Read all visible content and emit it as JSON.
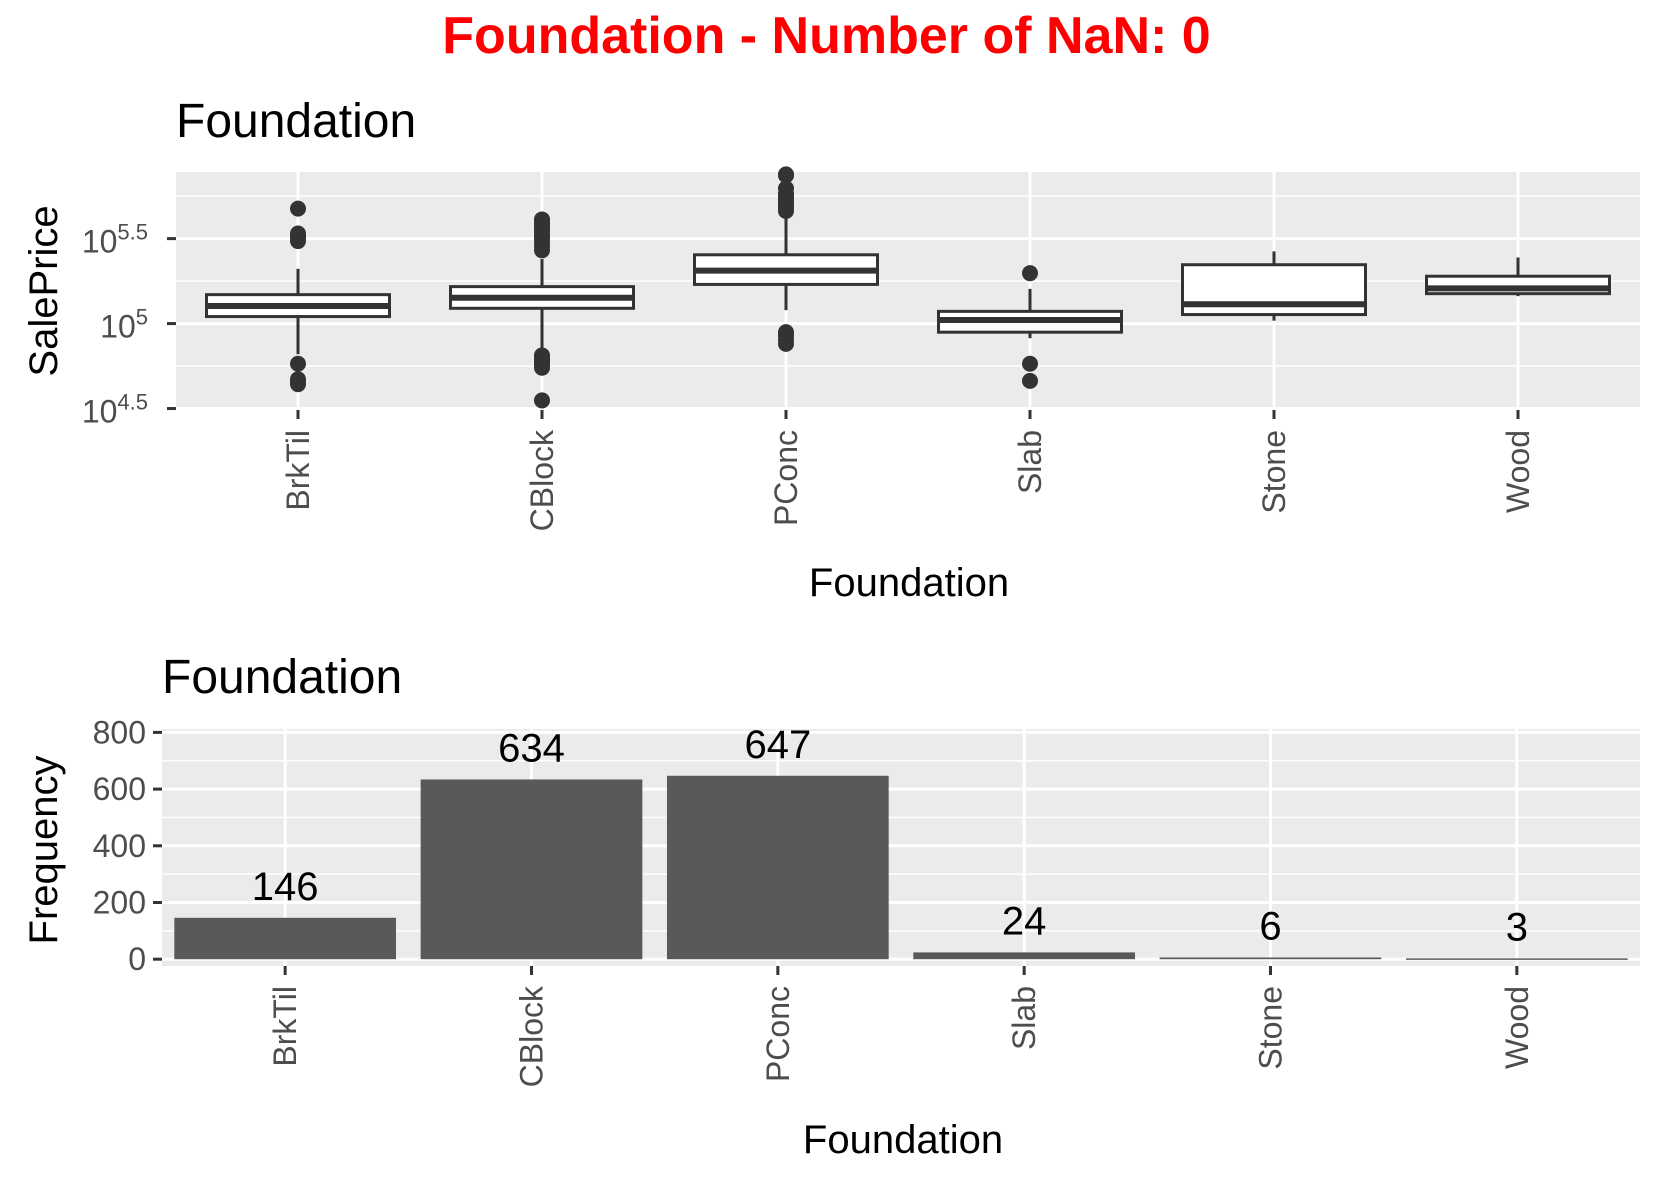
{
  "page": {
    "title": "Foundation - Number of NaN: 0",
    "title_color": "#ff0000"
  },
  "chart_data": [
    {
      "type": "box",
      "title": "Foundation",
      "xlabel": "Foundation",
      "ylabel": "SalePrice",
      "y_scale": "log10",
      "categories": [
        "BrkTil",
        "CBlock",
        "PConc",
        "Slab",
        "Stone",
        "Wood"
      ],
      "yticks": [
        {
          "value": 31623,
          "base": "10",
          "exp": "4.5"
        },
        {
          "value": 100000,
          "base": "10",
          "exp": "5"
        },
        {
          "value": 316228,
          "base": "10",
          "exp": "5.5"
        }
      ],
      "ylim": [
        31000,
        780000
      ],
      "boxes": [
        {
          "category": "BrkTil",
          "whisker_low": 66000,
          "q1": 110000,
          "median": 127000,
          "q3": 148000,
          "whisker_high": 210000,
          "outliers": [
            44000,
            46000,
            47000,
            58000,
            306000,
            319000,
            330000,
            339000,
            475000
          ]
        },
        {
          "category": "CBlock",
          "whisker_low": 68000,
          "q1": 123000,
          "median": 142000,
          "q3": 165000,
          "whisker_high": 240000,
          "outliers": [
            35300,
            55000,
            57000,
            59000,
            61000,
            63000,
            65000,
            270000,
            285000,
            300000,
            315000,
            325000,
            340000,
            355000,
            370000,
            385000,
            400000,
            410000
          ]
        },
        {
          "category": "PConc",
          "whisker_low": 120000,
          "q1": 170000,
          "median": 205000,
          "q3": 254000,
          "whisker_high": 440000,
          "outliers": [
            76000,
            80000,
            85000,
            89000,
            460000,
            480000,
            500000,
            520000,
            540000,
            560000,
            580000,
            625000,
            745000,
            755000
          ]
        },
        {
          "category": "Slab",
          "whisker_low": 82000,
          "q1": 89000,
          "median": 105000,
          "q3": 118000,
          "whisker_high": 160000,
          "outliers": [
            46000,
            58000,
            198000
          ]
        },
        {
          "category": "Stone",
          "whisker_low": 104000,
          "q1": 113000,
          "median": 130000,
          "q3": 222000,
          "whisker_high": 266000,
          "outliers": []
        },
        {
          "category": "Wood",
          "whisker_low": 145000,
          "q1": 150000,
          "median": 161000,
          "q3": 190000,
          "whisker_high": 245000,
          "outliers": []
        }
      ]
    },
    {
      "type": "bar",
      "title": "Foundation",
      "xlabel": "Foundation",
      "ylabel": "Frequency",
      "categories": [
        "BrkTil",
        "CBlock",
        "PConc",
        "Slab",
        "Stone",
        "Wood"
      ],
      "values": [
        146,
        634,
        647,
        24,
        6,
        3
      ],
      "data_labels": [
        "146",
        "634",
        "647",
        "24",
        "6",
        "3"
      ],
      "yticks": [
        0,
        200,
        400,
        600,
        800
      ],
      "ytick_labels": [
        "0",
        "200",
        "400",
        "600",
        "800"
      ],
      "ylim": [
        0,
        800
      ]
    }
  ],
  "style": {
    "panel_background": "#ebebeb",
    "grid_color": "#ffffff",
    "bar_color": "#595959",
    "box_line": "#333333",
    "box_fill": "#ffffff",
    "tick_text": "#4d4d4d"
  }
}
